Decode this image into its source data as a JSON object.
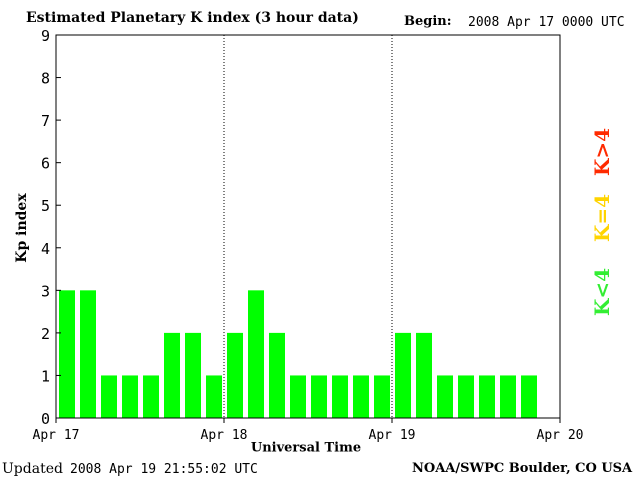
{
  "header": {
    "title": "Estimated Planetary K index (3 hour data)",
    "begin_label": "Begin:",
    "begin_value": "2008 Apr 17 0000 UTC"
  },
  "footer": {
    "updated_label": "Updated",
    "updated_value": "2008 Apr 19 21:55:02 UTC",
    "credit": "NOAA/SWPC Boulder, CO USA"
  },
  "legend": {
    "high": "K>4",
    "mid": "K=4",
    "low": "K<4",
    "colors": {
      "high": "#ff2a00",
      "mid": "#ffd400",
      "low": "#33ee33"
    }
  },
  "chart_data": {
    "type": "bar",
    "title": "Estimated Planetary K index (3 hour data)",
    "xlabel": "Universal Time",
    "ylabel": "Kp index",
    "ylim": [
      0,
      9
    ],
    "yticks": [
      "0",
      "1",
      "2",
      "3",
      "4",
      "5",
      "6",
      "7",
      "8",
      "9"
    ],
    "xticks": [
      "Apr 17",
      "Apr 18",
      "Apr 19",
      "Apr 20"
    ],
    "bar_color": "#00ff00",
    "grid": false,
    "day_separators": true,
    "interval_hours": 3,
    "values": [
      3,
      3,
      1,
      1,
      1,
      2,
      2,
      1,
      2,
      3,
      2,
      1,
      1,
      1,
      1,
      1,
      2,
      2,
      1,
      1,
      1,
      1,
      1
    ]
  }
}
